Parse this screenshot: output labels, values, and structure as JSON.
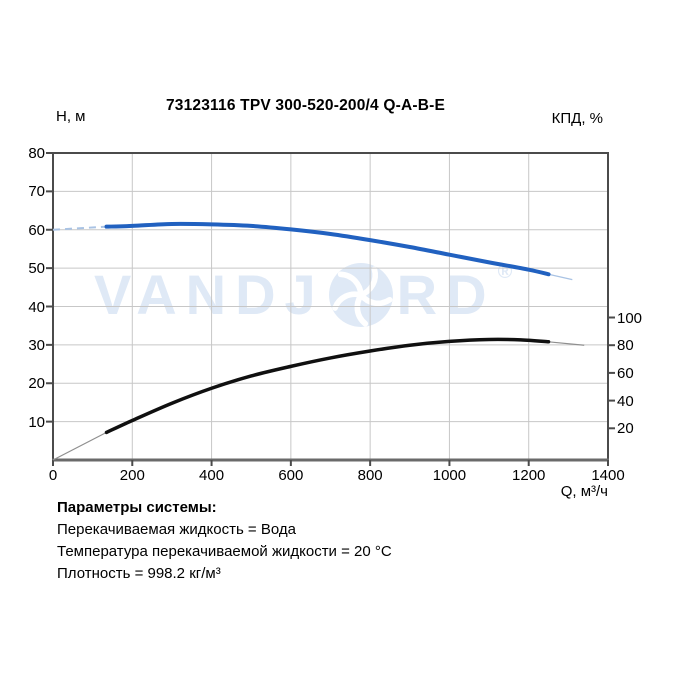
{
  "title": "73123116 TPV 300-520-200/4 Q-A-B-E",
  "colors": {
    "head_curve": "#2161c0",
    "head_curve_thin": "#a9c3e4",
    "efficiency_curve": "#101010",
    "efficiency_curve_thin": "#8f8f8f",
    "gridline": "#c7c7c7",
    "axis": "#4b4b4b",
    "bottom_axis": "#6a6a6a",
    "watermark": "#dfe9f6",
    "background": "#ffffff"
  },
  "watermark": {
    "text_left": "VANDJ",
    "text_right": "RD",
    "registered": "®",
    "logo_icon": "impeller-swirl"
  },
  "system_params": {
    "heading": "Параметры системы:",
    "lines": [
      "Перекачиваемая жидкость = Вода",
      "Температура перекачиваемой жидкости = 20 °C",
      "Плотность = 998.2 кг/м³"
    ]
  },
  "chart_data": {
    "type": "line",
    "title": "73123116 TPV 300-520-200/4 Q-A-B-E",
    "grid": true,
    "x_axis": {
      "label": "Q, м³/ч",
      "min": 0,
      "max": 1400,
      "ticks": [
        0,
        200,
        400,
        600,
        800,
        1000,
        1200,
        1400
      ]
    },
    "y_left_axis": {
      "label": "Н, м",
      "min": 0,
      "max": 80,
      "ticks": [
        10,
        20,
        30,
        40,
        50,
        60,
        70,
        80
      ]
    },
    "y_right_axis": {
      "label": "КПД, %",
      "min": 0,
      "ticks": [
        20,
        40,
        60,
        80,
        100
      ]
    },
    "series": [
      {
        "name": "head-curve",
        "axis": "left",
        "units": "м",
        "points_thin_start": [
          [
            0,
            60.0
          ],
          [
            135,
            60.8
          ]
        ],
        "points": [
          [
            135,
            60.8
          ],
          [
            200,
            61.0
          ],
          [
            300,
            61.5
          ],
          [
            400,
            61.4
          ],
          [
            500,
            61.0
          ],
          [
            600,
            60.1
          ],
          [
            700,
            58.9
          ],
          [
            800,
            57.3
          ],
          [
            900,
            55.5
          ],
          [
            1000,
            53.5
          ],
          [
            1100,
            51.5
          ],
          [
            1200,
            49.6
          ],
          [
            1250,
            48.4
          ]
        ],
        "points_thin_end": [
          [
            1250,
            48.4
          ],
          [
            1310,
            47.0
          ]
        ]
      },
      {
        "name": "efficiency-curve",
        "axis": "left-plotted-right-meaning",
        "units": "%",
        "points_thin_start": [
          [
            0,
            0.0
          ],
          [
            135,
            7.2
          ]
        ],
        "points": [
          [
            135,
            7.2
          ],
          [
            200,
            10.3
          ],
          [
            300,
            14.8
          ],
          [
            400,
            18.7
          ],
          [
            500,
            21.9
          ],
          [
            600,
            24.4
          ],
          [
            700,
            26.6
          ],
          [
            800,
            28.4
          ],
          [
            900,
            29.9
          ],
          [
            1000,
            30.9
          ],
          [
            1100,
            31.4
          ],
          [
            1180,
            31.3
          ],
          [
            1250,
            30.8
          ]
        ],
        "points_thin_end": [
          [
            1250,
            30.8
          ],
          [
            1340,
            29.9
          ]
        ],
        "efficiency_pct_at_points": [
          17,
          26,
          38,
          49,
          58,
          65,
          71,
          76,
          80,
          83,
          84,
          84,
          82
        ]
      }
    ]
  }
}
